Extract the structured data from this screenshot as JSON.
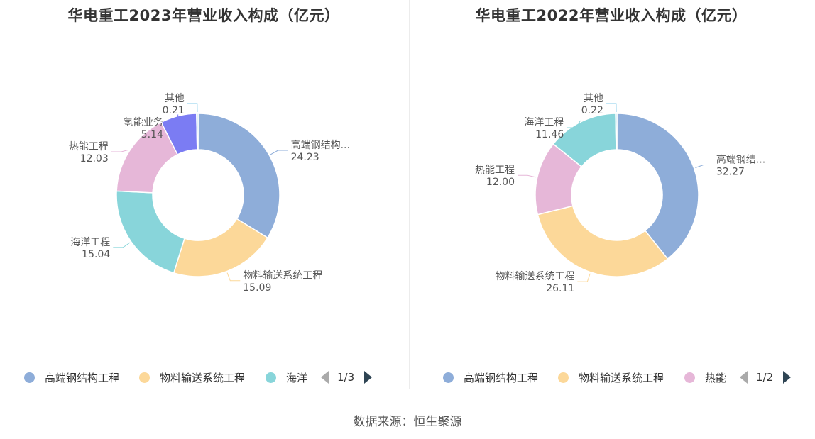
{
  "footer": {
    "source": "数据来源：恒生聚源"
  },
  "chart_data": [
    {
      "type": "pie",
      "title": "华电重工2023年营业收入构成（亿元）",
      "slices": [
        {
          "name": "高端钢结构工程",
          "label": "高端钢结构...",
          "value": 24.23,
          "value_text": "24.23",
          "color": "#8eadd9"
        },
        {
          "name": "物料输送系统工程",
          "label": "物料输送系统工程",
          "value": 15.09,
          "value_text": "15.09",
          "color": "#fcd899"
        },
        {
          "name": "海洋工程",
          "label": "海洋工程",
          "value": 15.04,
          "value_text": "15.04",
          "color": "#88d5da"
        },
        {
          "name": "热能工程",
          "label": "热能工程",
          "value": 12.03,
          "value_text": "12.03",
          "color": "#e6b7d8"
        },
        {
          "name": "氢能业务",
          "label": "氢能业务",
          "value": 5.14,
          "value_text": "5.14",
          "color": "#7b7cf3"
        },
        {
          "name": "其他",
          "label": "其他",
          "value": 0.21,
          "value_text": "0.21",
          "color": "#87ceeb"
        }
      ],
      "legend": {
        "items": [
          {
            "label": "高端钢结构工程",
            "color": "#8eadd9"
          },
          {
            "label": "物料输送系统工程",
            "color": "#fcd899"
          },
          {
            "label": "海洋",
            "color": "#88d5da"
          }
        ],
        "page": "1/3"
      }
    },
    {
      "type": "pie",
      "title": "华电重工2022年营业收入构成（亿元）",
      "slices": [
        {
          "name": "高端钢结构工程",
          "label": "高端钢结...",
          "value": 32.27,
          "value_text": "32.27",
          "color": "#8eadd9"
        },
        {
          "name": "物料输送系统工程",
          "label": "物料输送系统工程",
          "value": 26.11,
          "value_text": "26.11",
          "color": "#fcd899"
        },
        {
          "name": "热能工程",
          "label": "热能工程",
          "value": 12.0,
          "value_text": "12.00",
          "color": "#e6b7d8"
        },
        {
          "name": "海洋工程",
          "label": "海洋工程",
          "value": 11.46,
          "value_text": "11.46",
          "color": "#88d5da"
        },
        {
          "name": "其他",
          "label": "其他",
          "value": 0.22,
          "value_text": "0.22",
          "color": "#87ceeb"
        }
      ],
      "legend": {
        "items": [
          {
            "label": "高端钢结构工程",
            "color": "#8eadd9"
          },
          {
            "label": "物料输送系统工程",
            "color": "#fcd899"
          },
          {
            "label": "热能",
            "color": "#e6b7d8"
          }
        ],
        "page": "1/2"
      }
    }
  ]
}
